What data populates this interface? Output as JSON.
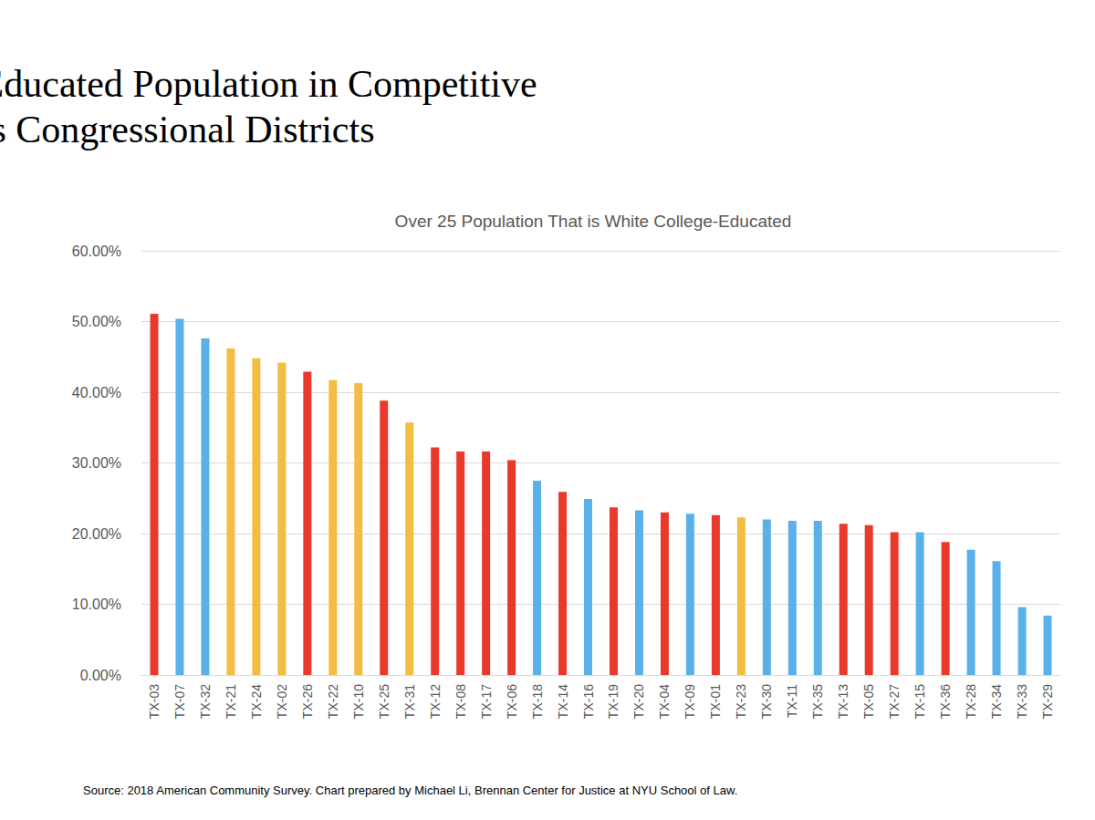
{
  "chart_data": {
    "type": "bar",
    "title": "White College-Educated Population in Competitive Texas Congressional Districts",
    "subtitle": "Over 25 Population That is White College-Educated",
    "source": "Source: 2018 American Community Survey. Chart prepared by Michael Li, Brennan Center for Justice at NYU School of Law.",
    "categories": [
      "TX-03",
      "TX-07",
      "TX-32",
      "TX-21",
      "TX-24",
      "TX-02",
      "TX-26",
      "TX-22",
      "TX-10",
      "TX-25",
      "TX-31",
      "TX-12",
      "TX-08",
      "TX-17",
      "TX-06",
      "TX-18",
      "TX-14",
      "TX-16",
      "TX-19",
      "TX-20",
      "TX-04",
      "TX-09",
      "TX-01",
      "TX-23",
      "TX-30",
      "TX-11",
      "TX-35",
      "TX-13",
      "TX-05",
      "TX-27",
      "TX-15",
      "TX-36",
      "TX-28",
      "TX-34",
      "TX-33",
      "TX-29"
    ],
    "values": [
      51.1,
      50.4,
      47.6,
      46.2,
      44.8,
      44.2,
      42.9,
      41.7,
      41.3,
      38.8,
      35.7,
      32.2,
      31.6,
      31.6,
      30.4,
      27.5,
      25.9,
      24.9,
      23.7,
      23.3,
      23.0,
      22.8,
      22.6,
      22.3,
      22.0,
      21.8,
      21.8,
      21.4,
      21.2,
      20.2,
      20.2,
      18.8,
      17.7,
      16.1,
      9.6,
      8.4
    ],
    "colors": [
      "#e8392b",
      "#5ab0e8",
      "#5ab0e8",
      "#f2bd42",
      "#f2bd42",
      "#f2bd42",
      "#e8392b",
      "#f2bd42",
      "#f2bd42",
      "#e8392b",
      "#f2bd42",
      "#e8392b",
      "#e8392b",
      "#e8392b",
      "#e8392b",
      "#5ab0e8",
      "#e8392b",
      "#5ab0e8",
      "#e8392b",
      "#5ab0e8",
      "#e8392b",
      "#5ab0e8",
      "#e8392b",
      "#f2bd42",
      "#5ab0e8",
      "#5ab0e8",
      "#5ab0e8",
      "#e8392b",
      "#e8392b",
      "#e8392b",
      "#5ab0e8",
      "#e8392b",
      "#5ab0e8",
      "#5ab0e8",
      "#5ab0e8",
      "#5ab0e8"
    ],
    "ylim": [
      0,
      60
    ],
    "yticks": [
      {
        "value": 0,
        "label": "0.00%"
      },
      {
        "value": 10,
        "label": "10.00%"
      },
      {
        "value": 20,
        "label": "20.00%"
      },
      {
        "value": 30,
        "label": "30.00%"
      },
      {
        "value": 40,
        "label": "40.00%"
      },
      {
        "value": 50,
        "label": "50.00%"
      },
      {
        "value": 60,
        "label": "60.00%"
      }
    ],
    "grid": true
  }
}
